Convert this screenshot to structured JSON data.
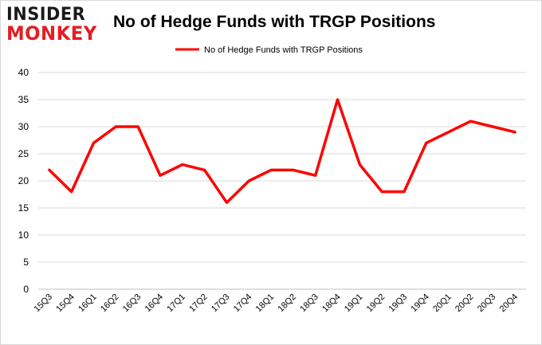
{
  "brand": {
    "logo_top": "INSIDER",
    "logo_bottom": "MONKEY",
    "red": "#e31e24"
  },
  "chart_data": {
    "type": "line",
    "title": "No of Hedge Funds with TRGP Positions",
    "xlabel": "",
    "ylabel": "",
    "ylim": [
      0,
      40
    ],
    "yticks": [
      0,
      5,
      10,
      15,
      20,
      25,
      30,
      35,
      40
    ],
    "grid": true,
    "legend_position": "top-center",
    "categories": [
      "15Q3",
      "15Q4",
      "16Q1",
      "16Q2",
      "16Q3",
      "16Q4",
      "17Q1",
      "17Q2",
      "17Q3",
      "17Q4",
      "18Q1",
      "18Q2",
      "18Q3",
      "18Q4",
      "19Q1",
      "19Q2",
      "19Q3",
      "19Q4",
      "20Q1",
      "20Q2",
      "20Q3",
      "20Q4"
    ],
    "series": [
      {
        "name": "No of Hedge Funds with TRGP Positions",
        "color": "#ff0000",
        "values": [
          22,
          18,
          27,
          30,
          30,
          21,
          23,
          22,
          16,
          20,
          22,
          22,
          21,
          35,
          23,
          18,
          18,
          27,
          29,
          31,
          30,
          29
        ]
      }
    ]
  }
}
